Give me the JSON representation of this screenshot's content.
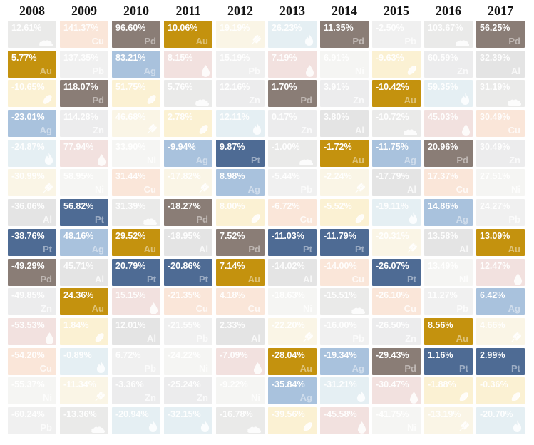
{
  "chart_data": {
    "type": "heatmap",
    "columns": [
      "2008",
      "2009",
      "2010",
      "2011",
      "2012",
      "2013",
      "2014",
      "2015",
      "2016",
      "2017"
    ],
    "legend_position": "none",
    "highlight_group": "precious-metals",
    "commodities": {
      "gold": {
        "label": "Gold",
        "symbol": "Au",
        "color": "#C4920E",
        "highlighted": true
      },
      "silver": {
        "label": "Silver",
        "symbol": "Ag",
        "color": "#A9C2DD",
        "highlighted": true
      },
      "platinum": {
        "label": "Platinum",
        "symbol": "Pt",
        "color": "#4E6B94",
        "highlighted": true
      },
      "palladium": {
        "label": "Palladium",
        "symbol": "Pd",
        "color": "#8A7D76",
        "highlighted": true
      },
      "aluminum": {
        "label": "Aluminum",
        "symbol": "Al",
        "color": "#E4E4E4",
        "highlighted": false
      },
      "copper": {
        "label": "Copper",
        "symbol": "Cu",
        "color": "#FAE6D9",
        "highlighted": false
      },
      "zinc": {
        "label": "Zinc",
        "symbol": "Zn",
        "color": "#ECECED",
        "highlighted": false
      },
      "nickel": {
        "label": "Nickel",
        "symbol": "Ni",
        "color": "#F5F5F3",
        "highlighted": false
      },
      "lead": {
        "label": "Lead",
        "symbol": "Pb",
        "color": "#F0F0F0",
        "highlighted": false
      },
      "coal": {
        "label": "Coal",
        "symbol": "",
        "icon": "coal-icon",
        "color": "#EAEAE9",
        "highlighted": false
      },
      "oil": {
        "label": "Oil",
        "symbol": "",
        "icon": "oil-icon",
        "color": "#F2E1DF",
        "highlighted": false
      },
      "gas": {
        "label": "Natural Gas",
        "symbol": "",
        "icon": "gas-icon",
        "color": "#E5EFF3",
        "highlighted": false
      },
      "corn": {
        "label": "Corn",
        "symbol": "",
        "icon": "corn-icon",
        "color": "#FBF1D3",
        "highlighted": false
      },
      "wheat": {
        "label": "Wheat",
        "symbol": "",
        "icon": "wheat-icon",
        "color": "#FAF5E6",
        "highlighted": false
      }
    },
    "returns": {
      "2008": [
        [
          "12.61%",
          "coal"
        ],
        [
          "5.77%",
          "gold"
        ],
        [
          "-10.65%",
          "corn"
        ],
        [
          "-23.01%",
          "silver"
        ],
        [
          "-24.87%",
          "gas"
        ],
        [
          "-30.99%",
          "wheat"
        ],
        [
          "-36.06%",
          "aluminum"
        ],
        [
          "-38.76%",
          "platinum"
        ],
        [
          "-49.29%",
          "palladium"
        ],
        [
          "-49.85%",
          "zinc"
        ],
        [
          "-53.53%",
          "oil"
        ],
        [
          "-54.20%",
          "copper"
        ],
        [
          "-55.37%",
          "nickel"
        ],
        [
          "-60.24%",
          "lead"
        ]
      ],
      "2009": [
        [
          "141.37%",
          "copper"
        ],
        [
          "137.35%",
          "lead"
        ],
        [
          "118.07%",
          "palladium"
        ],
        [
          "114.28%",
          "zinc"
        ],
        [
          "77.94%",
          "oil"
        ],
        [
          "58.95%",
          "nickel"
        ],
        [
          "56.82%",
          "platinum"
        ],
        [
          "48.16%",
          "silver"
        ],
        [
          "45.71%",
          "aluminum"
        ],
        [
          "24.36%",
          "gold"
        ],
        [
          "1.84%",
          "corn"
        ],
        [
          "-0.89%",
          "gas"
        ],
        [
          "-11.34%",
          "wheat"
        ],
        [
          "-13.36%",
          "coal"
        ]
      ],
      "2010": [
        [
          "96.60%",
          "palladium"
        ],
        [
          "83.21%",
          "silver"
        ],
        [
          "51.75%",
          "corn"
        ],
        [
          "46.68%",
          "wheat"
        ],
        [
          "33.90%",
          "nickel"
        ],
        [
          "31.44%",
          "copper"
        ],
        [
          "31.39%",
          "coal"
        ],
        [
          "29.52%",
          "gold"
        ],
        [
          "20.79%",
          "platinum"
        ],
        [
          "15.15%",
          "oil"
        ],
        [
          "12.01%",
          "aluminum"
        ],
        [
          "6.72%",
          "lead"
        ],
        [
          "-3.36%",
          "zinc"
        ],
        [
          "-20.94%",
          "gas"
        ]
      ],
      "2011": [
        [
          "10.06%",
          "gold"
        ],
        [
          "8.15%",
          "oil"
        ],
        [
          "5.76%",
          "coal"
        ],
        [
          "2.78%",
          "corn"
        ],
        [
          "-9.94%",
          "silver"
        ],
        [
          "-17.82%",
          "wheat"
        ],
        [
          "-18.27%",
          "palladium"
        ],
        [
          "-18.95%",
          "aluminum"
        ],
        [
          "-20.86%",
          "platinum"
        ],
        [
          "-21.35%",
          "copper"
        ],
        [
          "-21.55%",
          "lead"
        ],
        [
          "-24.22%",
          "nickel"
        ],
        [
          "-25.24%",
          "zinc"
        ],
        [
          "-32.15%",
          "gas"
        ]
      ],
      "2012": [
        [
          "19.19%",
          "wheat"
        ],
        [
          "15.19%",
          "lead"
        ],
        [
          "12.16%",
          "zinc"
        ],
        [
          "12.11%",
          "gas"
        ],
        [
          "9.87%",
          "platinum"
        ],
        [
          "8.98%",
          "silver"
        ],
        [
          "8.00%",
          "corn"
        ],
        [
          "7.52%",
          "palladium"
        ],
        [
          "7.14%",
          "gold"
        ],
        [
          "4.18%",
          "copper"
        ],
        [
          "2.33%",
          "aluminum"
        ],
        [
          "-7.09%",
          "oil"
        ],
        [
          "-9.22%",
          "nickel"
        ],
        [
          "-16.78%",
          "coal"
        ]
      ],
      "2013": [
        [
          "26.23%",
          "gas"
        ],
        [
          "7.19%",
          "oil"
        ],
        [
          "1.70%",
          "palladium"
        ],
        [
          "0.17%",
          "zinc"
        ],
        [
          "-1.00%",
          "coal"
        ],
        [
          "-5.44%",
          "lead"
        ],
        [
          "-6.72%",
          "copper"
        ],
        [
          "-11.03%",
          "platinum"
        ],
        [
          "-14.02%",
          "aluminum"
        ],
        [
          "-18.63%",
          "nickel"
        ],
        [
          "-22.20%",
          "wheat"
        ],
        [
          "-28.04%",
          "gold"
        ],
        [
          "-35.84%",
          "silver"
        ],
        [
          "-39.56%",
          "corn"
        ]
      ],
      "2014": [
        [
          "11.35%",
          "palladium"
        ],
        [
          "6.91%",
          "nickel"
        ],
        [
          "3.91%",
          "zinc"
        ],
        [
          "3.80%",
          "aluminum"
        ],
        [
          "-1.72%",
          "gold"
        ],
        [
          "-2.24%",
          "wheat"
        ],
        [
          "-5.52%",
          "corn"
        ],
        [
          "-11.79%",
          "platinum"
        ],
        [
          "-14.00%",
          "copper"
        ],
        [
          "-15.51%",
          "coal"
        ],
        [
          "-16.00%",
          "lead"
        ],
        [
          "-19.34%",
          "silver"
        ],
        [
          "-31.21%",
          "gas"
        ],
        [
          "-45.58%",
          "oil"
        ]
      ],
      "2015": [
        [
          "-2.50%",
          "lead"
        ],
        [
          "-9.63%",
          "corn"
        ],
        [
          "-10.42%",
          "gold"
        ],
        [
          "-10.72%",
          "coal"
        ],
        [
          "-11.75%",
          "silver"
        ],
        [
          "-17.79%",
          "aluminum"
        ],
        [
          "-19.11%",
          "gas"
        ],
        [
          "-20.31%",
          "wheat"
        ],
        [
          "-26.07%",
          "platinum"
        ],
        [
          "-26.10%",
          "copper"
        ],
        [
          "-26.50%",
          "zinc"
        ],
        [
          "-29.43%",
          "palladium"
        ],
        [
          "-30.47%",
          "oil"
        ],
        [
          "-41.75%",
          "nickel"
        ]
      ],
      "2016": [
        [
          "103.67%",
          "coal"
        ],
        [
          "60.59%",
          "zinc"
        ],
        [
          "59.35%",
          "gas"
        ],
        [
          "45.03%",
          "oil"
        ],
        [
          "20.96%",
          "palladium"
        ],
        [
          "17.37%",
          "copper"
        ],
        [
          "14.86%",
          "silver"
        ],
        [
          "13.58%",
          "aluminum"
        ],
        [
          "13.49%",
          "nickel"
        ],
        [
          "11.27%",
          "lead"
        ],
        [
          "8.56%",
          "gold"
        ],
        [
          "1.16%",
          "platinum"
        ],
        [
          "-1.88%",
          "corn"
        ],
        [
          "-13.19%",
          "wheat"
        ]
      ],
      "2017": [
        [
          "56.25%",
          "palladium"
        ],
        [
          "32.39%",
          "aluminum"
        ],
        [
          "31.19%",
          "coal"
        ],
        [
          "30.49%",
          "copper"
        ],
        [
          "30.49%",
          "zinc"
        ],
        [
          "27.51%",
          "nickel"
        ],
        [
          "24.27%",
          "lead"
        ],
        [
          "13.09%",
          "gold"
        ],
        [
          "12.47%",
          "oil"
        ],
        [
          "6.42%",
          "silver"
        ],
        [
          "4.66%",
          "wheat"
        ],
        [
          "2.99%",
          "platinum"
        ],
        [
          "-0.36%",
          "corn"
        ],
        [
          "-20.70%",
          "gas"
        ]
      ]
    }
  }
}
